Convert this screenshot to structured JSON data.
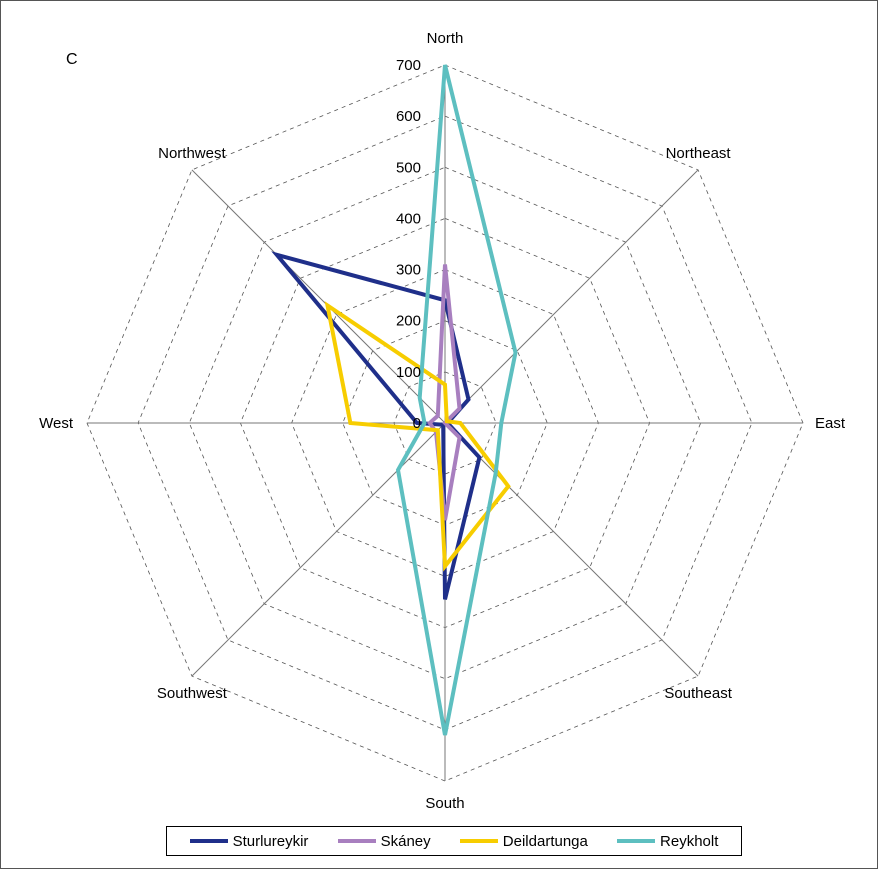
{
  "panel_label": "C",
  "chart_data": {
    "type": "radar",
    "categories": [
      "North",
      "Northeast",
      "East",
      "Southeast",
      "South",
      "Southwest",
      "West",
      "Northwest"
    ],
    "rlim": [
      0,
      700
    ],
    "ticks": [
      "0",
      "100",
      "200",
      "300",
      "400",
      "500",
      "600",
      "700"
    ],
    "grid": "dashed octagons every 100",
    "legend_position": "bottom",
    "series": [
      {
        "name": "Sturlureykir",
        "color": "#1f2f8a",
        "values": [
          240,
          65,
          5,
          95,
          345,
          5,
          55,
          465
        ]
      },
      {
        "name": "Skáney",
        "color": "#a87fbf",
        "values": [
          310,
          40,
          0,
          40,
          190,
          25,
          30,
          20
        ]
      },
      {
        "name": "Deildartunga",
        "color": "#f7cd00",
        "values": [
          75,
          5,
          30,
          175,
          280,
          20,
          185,
          325
        ]
      },
      {
        "name": "Reykholt",
        "color": "#5dbfc0",
        "values": [
          700,
          195,
          110,
          140,
          610,
          130,
          40,
          70
        ]
      }
    ]
  }
}
